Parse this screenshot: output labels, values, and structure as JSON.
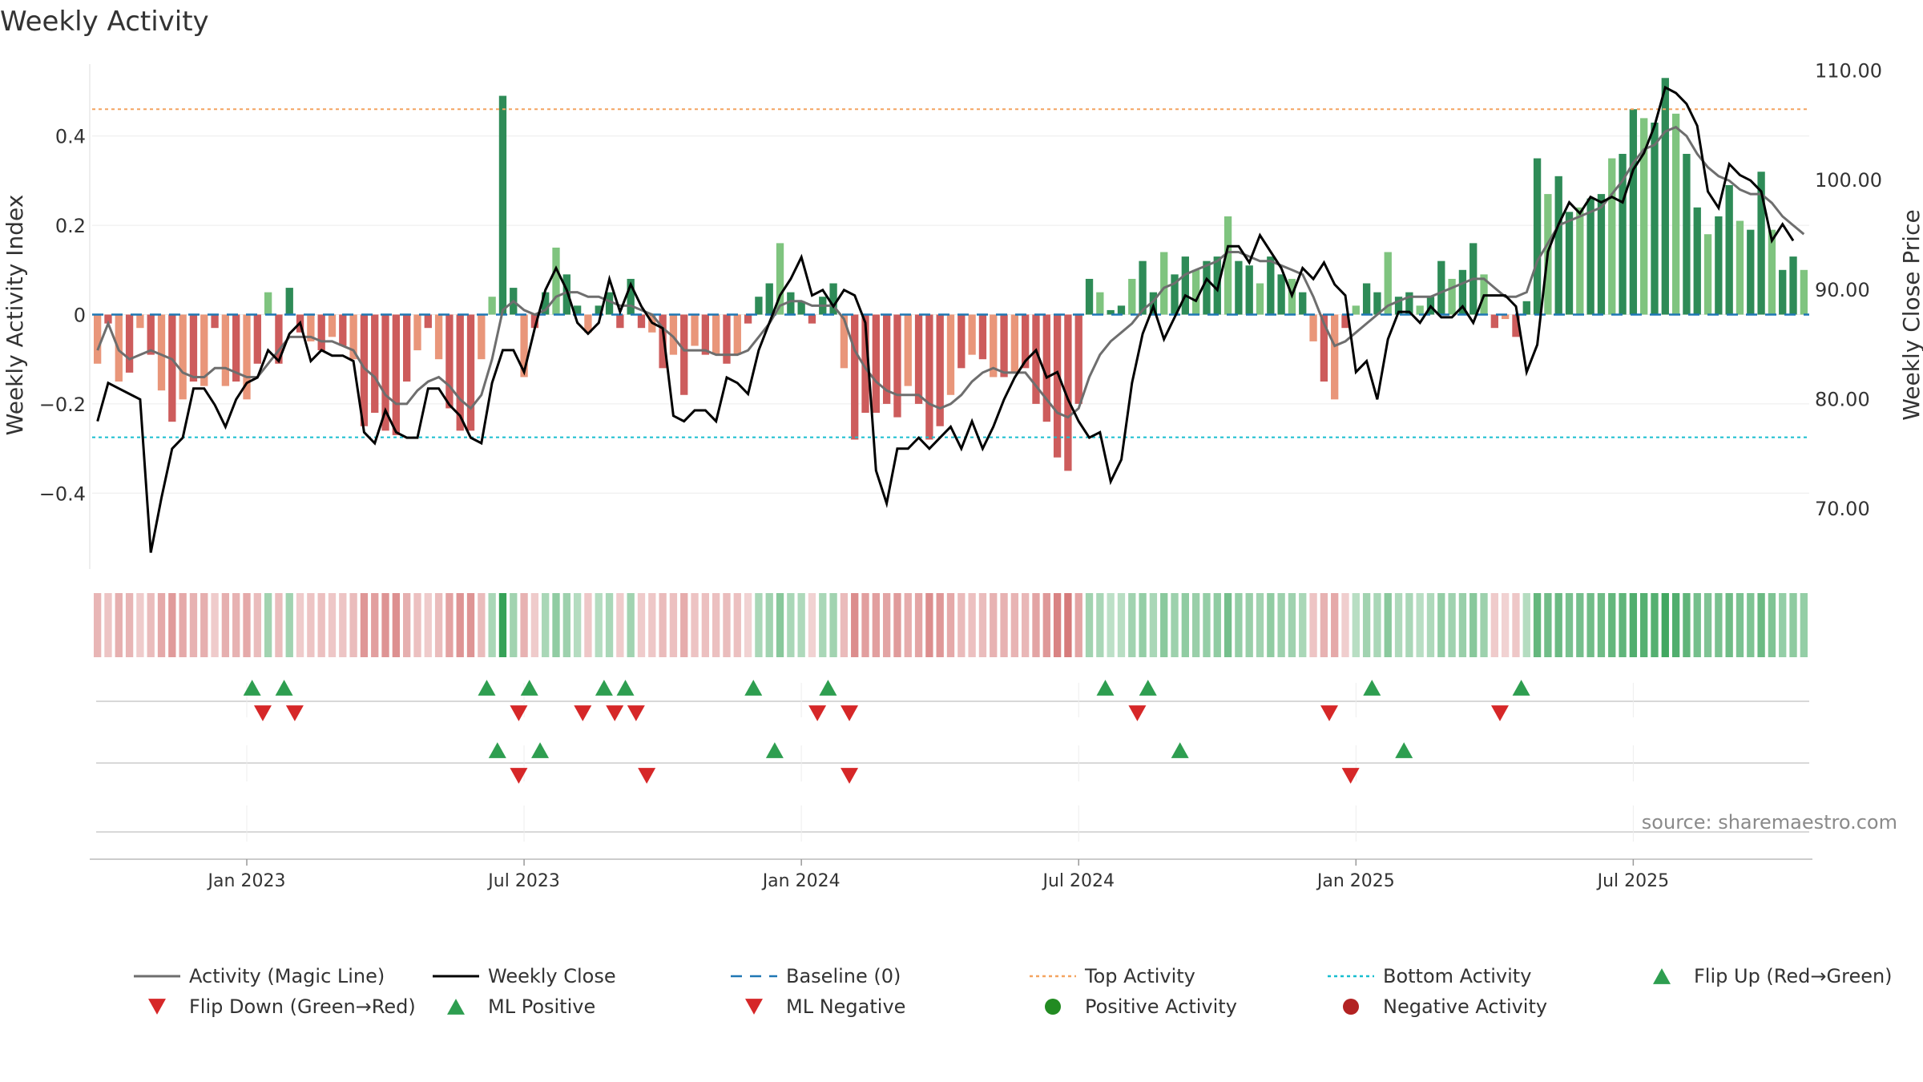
{
  "chart_data": {
    "type": "bar",
    "title": "Weekly Activity",
    "ylabel": "Weekly Activity Index",
    "ylabel_right": "Weekly Close Price",
    "source": "source: sharemaestro.com",
    "ylim": [
      -0.57,
      0.57
    ],
    "ylim_right": [
      64.5,
      111.0
    ],
    "yticks": [
      {
        "value": 0.4,
        "label": "0.4"
      },
      {
        "value": 0.2,
        "label": "0.2"
      },
      {
        "value": 0,
        "label": "0"
      },
      {
        "value": -0.2,
        "label": "−0.2"
      },
      {
        "value": -0.4,
        "label": "−0.4"
      }
    ],
    "yticks_right": [
      {
        "value": 110,
        "label": "110.00"
      },
      {
        "value": 100,
        "label": "100.00"
      },
      {
        "value": 90,
        "label": "90.00"
      },
      {
        "value": 80,
        "label": "80.00"
      },
      {
        "value": 70,
        "label": "70.00"
      }
    ],
    "xticks": [
      {
        "week": 14.5,
        "label": "Jan 2023"
      },
      {
        "week": 40.5,
        "label": "Jul 2023"
      },
      {
        "week": 66.5,
        "label": "Jan 2024"
      },
      {
        "week": 92.5,
        "label": "Jul 2024"
      },
      {
        "week": 118.5,
        "label": "Jan 2025"
      },
      {
        "week": 144.5,
        "label": "Jul 2025"
      }
    ],
    "top_activity": 0.46,
    "bottom_activity": -0.275,
    "activity": [
      -0.11,
      -0.02,
      -0.15,
      -0.13,
      -0.03,
      -0.09,
      -0.17,
      -0.24,
      -0.19,
      -0.15,
      -0.16,
      -0.03,
      -0.16,
      -0.15,
      -0.19,
      -0.11,
      0.05,
      -0.11,
      0.06,
      -0.04,
      -0.06,
      -0.08,
      -0.05,
      -0.07,
      -0.1,
      -0.25,
      -0.22,
      -0.26,
      -0.27,
      -0.15,
      -0.08,
      -0.03,
      -0.1,
      -0.21,
      -0.26,
      -0.26,
      -0.1,
      0.04,
      0.49,
      0.06,
      -0.14,
      -0.03,
      0.05,
      0.15,
      0.09,
      0.02,
      -0.04,
      0.02,
      0.05,
      -0.03,
      0.08,
      -0.03,
      -0.04,
      -0.12,
      -0.09,
      -0.18,
      -0.07,
      -0.09,
      -0.09,
      -0.11,
      -0.09,
      -0.02,
      0.04,
      0.07,
      0.16,
      0.05,
      0.03,
      -0.02,
      0.04,
      0.07,
      -0.12,
      -0.28,
      -0.22,
      -0.22,
      -0.2,
      -0.23,
      -0.16,
      -0.2,
      -0.28,
      -0.25,
      -0.18,
      -0.12,
      -0.09,
      -0.1,
      -0.14,
      -0.14,
      -0.13,
      -0.12,
      -0.2,
      -0.24,
      -0.32,
      -0.35,
      -0.2,
      0.08,
      0.05,
      0.01,
      0.02,
      0.08,
      0.12,
      0.05,
      0.14,
      0.09,
      0.13,
      0.1,
      0.12,
      0.13,
      0.22,
      0.12,
      0.11,
      0.07,
      0.13,
      0.09,
      0.08,
      0.05,
      -0.06,
      -0.15,
      -0.19,
      -0.03,
      0.02,
      0.07,
      0.05,
      0.14,
      0.04,
      0.05,
      0.02,
      0.04,
      0.12,
      0.08,
      0.1,
      0.16,
      0.09,
      -0.03,
      -0.01,
      -0.05,
      0.03,
      0.35,
      0.27,
      0.31,
      0.23,
      0.24,
      0.26,
      0.27,
      0.35,
      0.36,
      0.46,
      0.44,
      0.43,
      0.53,
      0.45,
      0.36,
      0.24,
      0.18,
      0.22,
      0.29,
      0.21,
      0.19,
      0.32,
      0.19,
      0.1,
      0.13,
      0.1
    ],
    "magic_line": [
      -0.08,
      -0.02,
      -0.08,
      -0.1,
      -0.09,
      -0.08,
      -0.09,
      -0.1,
      -0.13,
      -0.14,
      -0.14,
      -0.12,
      -0.12,
      -0.13,
      -0.14,
      -0.14,
      -0.11,
      -0.08,
      -0.05,
      -0.05,
      -0.05,
      -0.06,
      -0.06,
      -0.07,
      -0.08,
      -0.12,
      -0.14,
      -0.18,
      -0.2,
      -0.2,
      -0.17,
      -0.15,
      -0.14,
      -0.16,
      -0.19,
      -0.21,
      -0.18,
      -0.1,
      0.01,
      0.03,
      0.01,
      0.0,
      0.01,
      0.04,
      0.05,
      0.05,
      0.04,
      0.04,
      0.03,
      0.02,
      0.02,
      0.01,
      0.0,
      -0.03,
      -0.05,
      -0.08,
      -0.08,
      -0.08,
      -0.09,
      -0.09,
      -0.09,
      -0.08,
      -0.05,
      -0.02,
      0.02,
      0.03,
      0.03,
      0.02,
      0.02,
      0.02,
      -0.01,
      -0.08,
      -0.12,
      -0.15,
      -0.17,
      -0.18,
      -0.18,
      -0.18,
      -0.2,
      -0.21,
      -0.2,
      -0.18,
      -0.15,
      -0.13,
      -0.12,
      -0.13,
      -0.13,
      -0.13,
      -0.16,
      -0.19,
      -0.22,
      -0.23,
      -0.21,
      -0.14,
      -0.09,
      -0.06,
      -0.04,
      -0.02,
      0.01,
      0.03,
      0.06,
      0.07,
      0.09,
      0.1,
      0.11,
      0.12,
      0.14,
      0.14,
      0.13,
      0.12,
      0.12,
      0.11,
      0.1,
      0.09,
      0.04,
      -0.02,
      -0.07,
      -0.06,
      -0.04,
      -0.02,
      0.0,
      0.02,
      0.03,
      0.04,
      0.04,
      0.04,
      0.05,
      0.06,
      0.07,
      0.08,
      0.08,
      0.06,
      0.04,
      0.04,
      0.05,
      0.12,
      0.16,
      0.2,
      0.21,
      0.22,
      0.23,
      0.24,
      0.27,
      0.3,
      0.34,
      0.37,
      0.38,
      0.41,
      0.42,
      0.4,
      0.36,
      0.33,
      0.31,
      0.3,
      0.28,
      0.27,
      0.27,
      0.25,
      0.22,
      0.2,
      0.18
    ],
    "weekly_close": [
      78.0,
      81.5,
      81.0,
      80.5,
      80.0,
      66.0,
      71.0,
      75.5,
      76.5,
      81.0,
      81.0,
      79.5,
      77.5,
      80.0,
      81.5,
      82.0,
      84.5,
      83.5,
      86.0,
      87.0,
      83.5,
      84.5,
      84.0,
      84.0,
      83.5,
      77.0,
      76.0,
      79.0,
      77.0,
      76.5,
      76.5,
      81.0,
      81.0,
      79.5,
      78.5,
      76.5,
      76.0,
      81.5,
      84.5,
      84.5,
      82.5,
      86.5,
      90.0,
      92.0,
      90.0,
      87.0,
      86.0,
      87.0,
      91.0,
      88.0,
      90.5,
      88.5,
      87.0,
      86.5,
      78.5,
      78.0,
      79.0,
      79.0,
      78.0,
      82.0,
      81.5,
      80.5,
      84.5,
      87.0,
      89.5,
      91.0,
      93.0,
      89.5,
      90.0,
      88.5,
      90.0,
      89.5,
      87.0,
      73.5,
      70.5,
      75.5,
      75.5,
      76.5,
      75.5,
      76.5,
      77.5,
      75.5,
      78.0,
      75.5,
      77.5,
      80.0,
      82.0,
      83.5,
      84.5,
      82.0,
      82.5,
      80.0,
      78.0,
      76.5,
      77.0,
      72.5,
      74.5,
      81.5,
      86.0,
      88.5,
      85.5,
      87.5,
      89.5,
      89.0,
      91.0,
      90.0,
      94.0,
      94.0,
      92.5,
      95.0,
      93.5,
      92.0,
      89.5,
      92.0,
      91.0,
      92.5,
      90.5,
      89.5,
      82.5,
      83.5,
      80.0,
      85.5,
      88.0,
      88.0,
      87.0,
      88.5,
      87.5,
      87.5,
      88.5,
      87.0,
      89.5,
      89.5,
      89.5,
      88.5,
      82.5,
      85.0,
      93.5,
      96.0,
      98.0,
      97.0,
      98.5,
      98.0,
      98.5,
      98.0,
      101.0,
      102.5,
      105.0,
      108.5,
      108.0,
      107.0,
      105.0,
      99.0,
      97.5,
      101.5,
      100.5,
      100.0,
      99.0,
      94.5,
      96.0,
      94.5
    ],
    "heat_strip": [
      -0.35,
      -0.25,
      -0.4,
      -0.35,
      -0.2,
      -0.3,
      -0.45,
      -0.55,
      -0.45,
      -0.38,
      -0.4,
      -0.2,
      -0.4,
      -0.38,
      -0.45,
      -0.3,
      0.35,
      -0.3,
      0.35,
      -0.2,
      -0.25,
      -0.28,
      -0.22,
      -0.25,
      -0.3,
      -0.58,
      -0.52,
      -0.6,
      -0.62,
      -0.4,
      -0.28,
      -0.2,
      -0.3,
      -0.5,
      -0.6,
      -0.6,
      -0.3,
      0.3,
      0.95,
      0.35,
      -0.38,
      -0.2,
      0.3,
      0.45,
      0.38,
      0.25,
      -0.22,
      0.25,
      0.3,
      -0.2,
      0.35,
      -0.2,
      -0.22,
      -0.32,
      -0.28,
      -0.42,
      -0.26,
      -0.28,
      -0.28,
      -0.3,
      -0.28,
      -0.15,
      0.3,
      0.35,
      0.5,
      0.3,
      0.28,
      -0.15,
      0.3,
      0.35,
      -0.32,
      -0.65,
      -0.52,
      -0.52,
      -0.48,
      -0.54,
      -0.42,
      -0.48,
      -0.65,
      -0.58,
      -0.45,
      -0.32,
      -0.28,
      -0.3,
      -0.38,
      -0.38,
      -0.36,
      -0.34,
      -0.48,
      -0.56,
      -0.72,
      -0.78,
      -0.48,
      0.35,
      0.3,
      0.2,
      0.22,
      0.35,
      0.42,
      0.3,
      0.48,
      0.38,
      0.45,
      0.4,
      0.42,
      0.45,
      0.6,
      0.42,
      0.4,
      0.35,
      0.45,
      0.38,
      0.36,
      0.3,
      -0.25,
      -0.38,
      -0.45,
      -0.18,
      0.22,
      0.35,
      0.3,
      0.48,
      0.28,
      0.3,
      0.22,
      0.28,
      0.42,
      0.36,
      0.4,
      0.5,
      0.38,
      -0.2,
      -0.15,
      -0.22,
      0.25,
      0.7,
      0.62,
      0.66,
      0.58,
      0.6,
      0.62,
      0.64,
      0.7,
      0.72,
      0.8,
      0.78,
      0.78,
      0.88,
      0.8,
      0.72,
      0.6,
      0.55,
      0.58,
      0.64,
      0.56,
      0.54,
      0.66,
      0.54,
      0.42,
      0.46,
      0.42
    ],
    "flip_up_weeks": [
      15,
      18,
      37,
      41,
      48,
      50,
      62,
      69,
      95,
      99,
      120,
      134
    ],
    "flip_down_weeks": [
      16,
      19,
      40,
      46,
      49,
      51,
      68,
      71,
      98,
      116,
      132
    ],
    "ml_positive_weeks": [
      38,
      42,
      64,
      102,
      123
    ],
    "ml_negative_weeks": [
      40,
      52,
      71,
      118
    ],
    "legend": [
      {
        "label": "Activity (Magic Line)",
        "kind": "line",
        "color": "#6e6e6e",
        "dash": "none"
      },
      {
        "label": "Weekly Close",
        "kind": "line",
        "color": "#000000",
        "dash": "none"
      },
      {
        "label": "Baseline (0)",
        "kind": "line",
        "color": "#1f77b4",
        "dash": "14,10"
      },
      {
        "label": "Top Activity",
        "kind": "line",
        "color": "#f4a460",
        "dash": "4,4"
      },
      {
        "label": "Bottom Activity",
        "kind": "line",
        "color": "#17becf",
        "dash": "4,4"
      },
      {
        "label": "Flip Up (Red→Green)",
        "kind": "tri-up",
        "color": "#2e9e50",
        "dash": "none"
      },
      {
        "label": "Flip Down (Green→Red)",
        "kind": "tri-down",
        "color": "#d62728",
        "dash": "none"
      },
      {
        "label": "ML Positive",
        "kind": "tri-up",
        "color": "#2e9e50",
        "dash": "none"
      },
      {
        "label": "ML Negative",
        "kind": "tri-down",
        "color": "#d62728",
        "dash": "none"
      },
      {
        "label": "Positive Activity",
        "kind": "dot",
        "color": "#228b22",
        "dash": "none"
      },
      {
        "label": "Negative Activity",
        "kind": "dot",
        "color": "#b22222",
        "dash": "none"
      }
    ],
    "colors": {
      "pos_strong": "#2e8b57",
      "pos_light": "#7fc47f",
      "neg_strong": "#cd5c5c",
      "neg_light": "#e9967a",
      "flip_up": "#2e9e50",
      "flip_down": "#d62728",
      "baseline": "#1f77b4",
      "top": "#f4a460",
      "bottom": "#17becf",
      "magic": "#6e6e6e",
      "close": "#000000"
    }
  }
}
